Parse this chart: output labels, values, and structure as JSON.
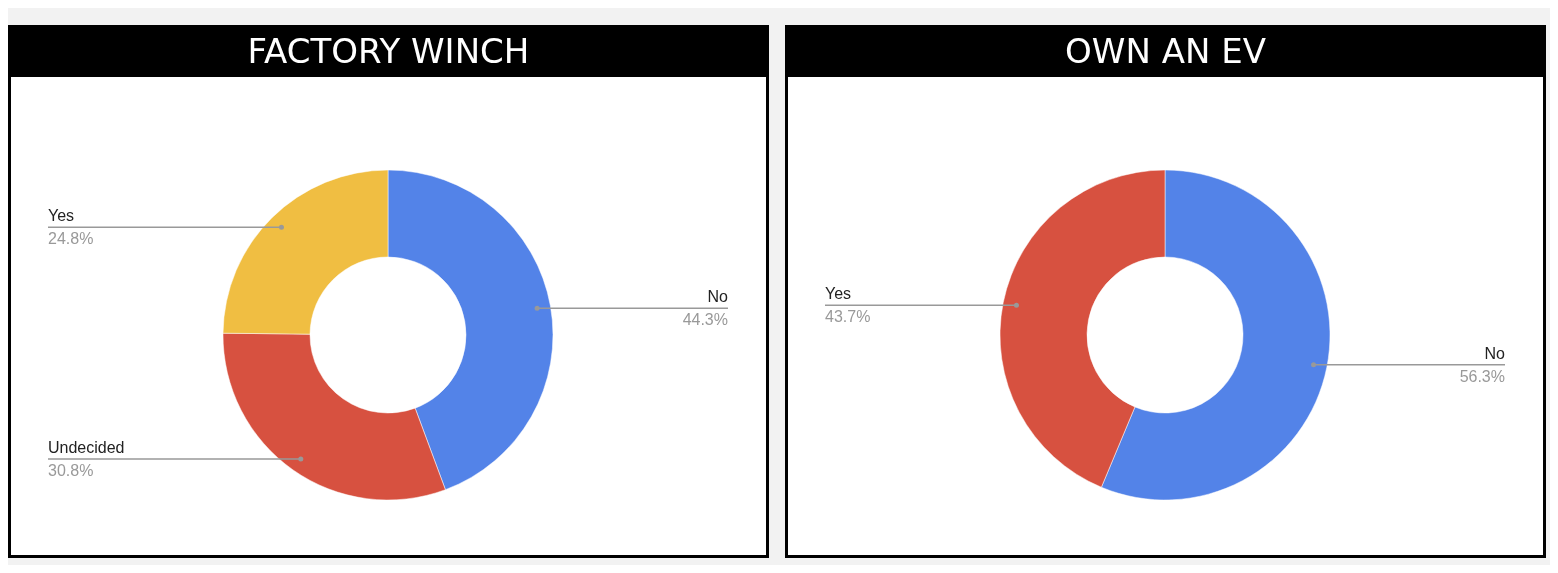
{
  "chart_data": [
    {
      "type": "donut",
      "title": "FACTORY WINCH",
      "categories": [
        "No",
        "Undecided",
        "Yes"
      ],
      "values": [
        44.3,
        30.8,
        24.8
      ],
      "colors": [
        "#5383e8",
        "#d75140",
        "#f0be42"
      ],
      "value_labels": [
        "44.3%",
        "30.8%",
        "24.8%"
      ]
    },
    {
      "type": "donut",
      "title": "OWN AN EV",
      "categories": [
        "No",
        "Yes"
      ],
      "values": [
        56.3,
        43.7
      ],
      "colors": [
        "#5383e8",
        "#d75140"
      ],
      "value_labels": [
        "56.3%",
        "43.7%"
      ]
    }
  ]
}
